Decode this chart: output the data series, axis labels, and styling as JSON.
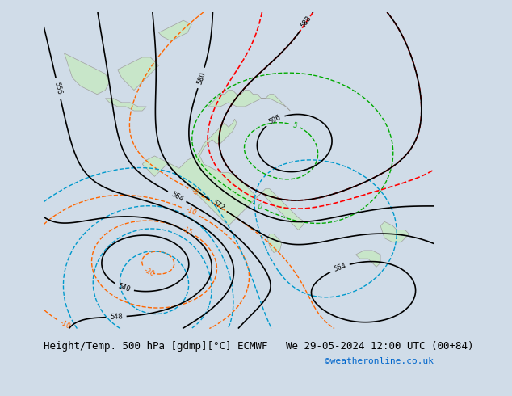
{
  "title_left": "Height/Temp. 500 hPa [gdmp][°C] ECMWF",
  "title_right": "We 29-05-2024 12:00 UTC (00+84)",
  "credit": "©weatheronline.co.uk",
  "bg_color": "#d0dce8",
  "land_color": "#c8e6c9",
  "border_color": "#a0a0a0",
  "contour_color_z500": "#000000",
  "contour_color_temp_neg": "#ff6600",
  "contour_color_temp_pos": "#00cc00",
  "contour_color_slp": "#0099cc",
  "contour_color_special": "#ff0000",
  "font_size_title": 9,
  "font_size_credit": 8,
  "font_size_labels": 7,
  "figsize": [
    6.34,
    4.9
  ],
  "dpi": 100
}
